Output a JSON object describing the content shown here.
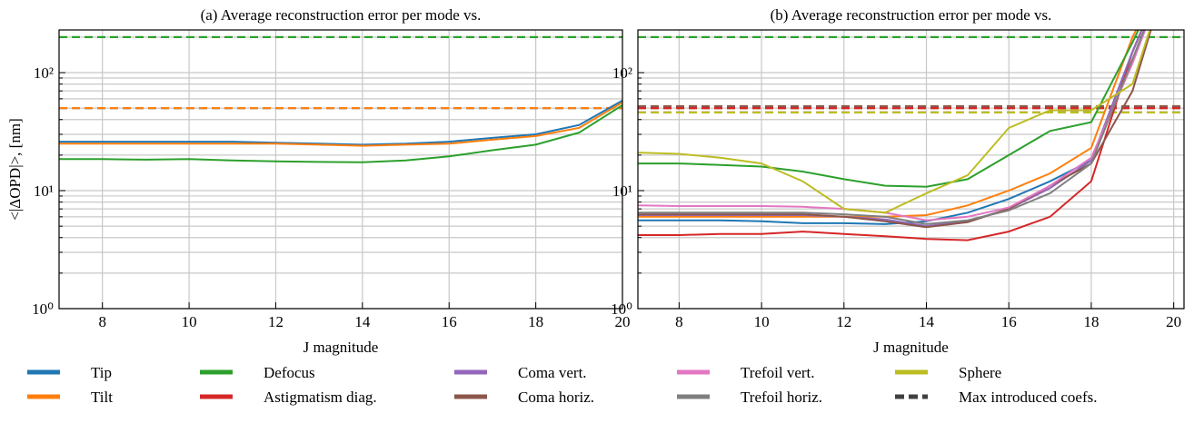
{
  "chart_data": [
    {
      "type": "line",
      "title": "(a)  Average reconstruction error per mode vs.",
      "ylabel": "<|ΔOPD|>, [nm]",
      "xlabel": "J magnitude",
      "x": [
        7,
        8,
        9,
        10,
        11,
        12,
        13,
        14,
        15,
        16,
        17,
        18,
        19,
        20
      ],
      "xlim": [
        7,
        20
      ],
      "xticks": [
        8,
        10,
        12,
        14,
        16,
        18,
        20
      ],
      "ylim": [
        1,
        230
      ],
      "log_y": true,
      "yticks": [
        {
          "value": 1,
          "label": "10⁰"
        },
        {
          "value": 10,
          "label": "10¹"
        },
        {
          "value": 100,
          "label": "10²"
        }
      ],
      "yminorticks": [
        2,
        3,
        4,
        5,
        6,
        7,
        8,
        9,
        20,
        30,
        40,
        50,
        60,
        70,
        80,
        90,
        200
      ],
      "grid": true,
      "series": [
        {
          "name": "Tip",
          "color": "#1f77b4",
          "max": 50,
          "values": [
            26,
            26,
            26,
            26,
            26,
            25.5,
            25,
            24.5,
            25,
            26,
            28,
            30,
            36,
            58
          ]
        },
        {
          "name": "Tilt",
          "color": "#ff7f0e",
          "max": 50,
          "values": [
            25,
            25,
            25,
            25,
            25,
            25,
            24.5,
            24,
            24.5,
            25,
            27,
            29,
            34,
            56
          ]
        },
        {
          "name": "Defocus",
          "color": "#2ca02c",
          "max": 200,
          "values": [
            18.5,
            18.5,
            18.3,
            18.5,
            18,
            17.7,
            17.5,
            17.4,
            18,
            19.5,
            22,
            24.5,
            31,
            53
          ]
        }
      ]
    },
    {
      "type": "line",
      "title": "(b)  Average reconstruction error per mode vs.",
      "xlabel": "J magnitude",
      "x": [
        7,
        8,
        9,
        10,
        11,
        12,
        13,
        14,
        15,
        16,
        17,
        18,
        19,
        20
      ],
      "xlim": [
        7,
        20.25
      ],
      "xticks": [
        8,
        10,
        12,
        14,
        16,
        18,
        20
      ],
      "ylim": [
        1,
        230
      ],
      "log_y": true,
      "yticks": [
        {
          "value": 1,
          "label": "10⁰"
        },
        {
          "value": 10,
          "label": "10¹"
        },
        {
          "value": 100,
          "label": "10²"
        }
      ],
      "yminorticks": [
        2,
        3,
        4,
        5,
        6,
        7,
        8,
        9,
        20,
        30,
        40,
        50,
        60,
        70,
        80,
        90,
        200
      ],
      "grid": true,
      "max_label": "Max introduced coefs.",
      "max_color": "#404040",
      "series": [
        {
          "name": "Tip",
          "color": "#1f77b4",
          "max": 50,
          "values": [
            5.6,
            5.6,
            5.6,
            5.5,
            5.3,
            5.3,
            5.2,
            5.5,
            6.5,
            8.5,
            12,
            18,
            150,
            1000
          ]
        },
        {
          "name": "Tilt",
          "color": "#ff7f0e",
          "max": 50,
          "values": [
            6,
            6,
            6,
            6,
            6,
            6,
            6,
            6.2,
            7.5,
            10,
            14,
            23,
            200,
            1000
          ]
        },
        {
          "name": "Defocus",
          "color": "#2ca02c",
          "max": 200,
          "values": [
            17,
            17,
            16.5,
            16,
            14.5,
            12.5,
            11,
            10.8,
            12.5,
            20,
            32,
            38,
            180,
            1000
          ]
        },
        {
          "name": "Astigmatism diag.",
          "color": "#d62728",
          "max": 50,
          "values": [
            4.2,
            4.2,
            4.3,
            4.3,
            4.5,
            4.3,
            4.1,
            3.9,
            3.8,
            4.5,
            6,
            12,
            150,
            1000
          ]
        },
        {
          "name": "Coma vert.",
          "color": "#9467bd",
          "max": 46,
          "values": [
            6.2,
            6.2,
            6.2,
            6.2,
            6.2,
            6,
            5.7,
            5,
            5.5,
            7,
            10.5,
            18,
            150,
            1000
          ]
        },
        {
          "name": "Coma horiz.",
          "color": "#8c564b",
          "max": 52,
          "values": [
            6.3,
            6.3,
            6.3,
            6.3,
            6.3,
            6,
            5.5,
            4.9,
            5.4,
            7,
            11,
            17,
            70,
            1000
          ]
        },
        {
          "name": "Trefoil vert.",
          "color": "#e377c2",
          "max": 46,
          "values": [
            7.5,
            7.4,
            7.4,
            7.4,
            7.3,
            7,
            6.5,
            5.6,
            6,
            7.2,
            11,
            19,
            120,
            1000
          ]
        },
        {
          "name": "Trefoil horiz.",
          "color": "#7f7f7f",
          "max": 46,
          "values": [
            6.5,
            6.5,
            6.5,
            6.5,
            6.5,
            6.3,
            6,
            5.2,
            5.6,
            6.8,
            9.5,
            17,
            130,
            1000
          ]
        },
        {
          "name": "Sphere",
          "color": "#bcbd22",
          "max": 46,
          "values": [
            21,
            20.5,
            19,
            17,
            12,
            7,
            6.5,
            9.5,
            13.5,
            34,
            48,
            48,
            80,
            1000
          ]
        }
      ]
    }
  ]
}
